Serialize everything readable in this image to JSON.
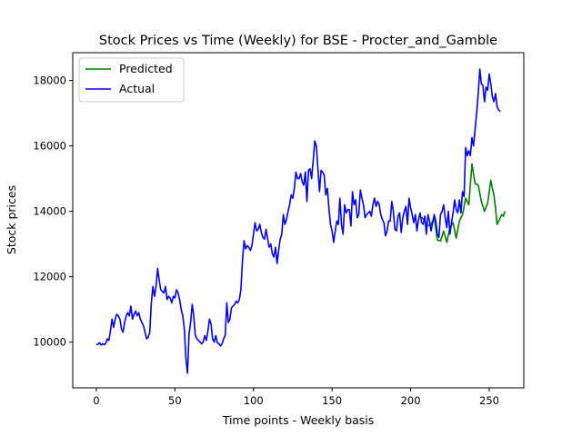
{
  "chart_data": {
    "type": "line",
    "title": "Stock Prices vs Time (Weekly) for BSE - Procter_and_Gamble",
    "xlabel": "Time points - Weekly basis",
    "ylabel": "Stock prices",
    "xlim": [
      -15,
      272
    ],
    "ylim": [
      8600,
      18850
    ],
    "xticks": [
      0,
      50,
      100,
      150,
      200,
      250
    ],
    "yticks": [
      10000,
      12000,
      14000,
      16000,
      18000
    ],
    "xtick_labels": [
      "0",
      "50",
      "100",
      "150",
      "200",
      "250"
    ],
    "ytick_labels": [
      "10000",
      "12000",
      "14000",
      "16000",
      "18000"
    ],
    "grid": false,
    "legend_position": "top-left",
    "series": [
      {
        "name": "Predicted",
        "color": "#008000",
        "points": [
          [
            207,
            13820
          ],
          [
            209,
            13700
          ],
          [
            211,
            13560
          ],
          [
            213,
            13600
          ],
          [
            215,
            13800
          ],
          [
            217,
            13120
          ],
          [
            219,
            13090
          ],
          [
            221,
            13400
          ],
          [
            223,
            13050
          ],
          [
            225,
            13500
          ],
          [
            227,
            13650
          ],
          [
            229,
            13180
          ],
          [
            231,
            13700
          ],
          [
            233,
            13900
          ],
          [
            235,
            14400
          ],
          [
            237,
            14200
          ],
          [
            239,
            15450
          ],
          [
            241,
            14850
          ],
          [
            243,
            14800
          ],
          [
            245,
            14300
          ],
          [
            247,
            14000
          ],
          [
            249,
            14250
          ],
          [
            251,
            14950
          ],
          [
            252,
            14700
          ],
          [
            253,
            14500
          ],
          [
            254,
            14100
          ],
          [
            255,
            13600
          ],
          [
            256,
            13700
          ],
          [
            257,
            13800
          ],
          [
            258,
            13900
          ],
          [
            259,
            13850
          ],
          [
            260,
            14000
          ]
        ]
      },
      {
        "name": "Actual",
        "color": "#0000ff",
        "points": [
          [
            0,
            9920
          ],
          [
            1,
            9930
          ],
          [
            2,
            9980
          ],
          [
            3,
            9910
          ],
          [
            4,
            9950
          ],
          [
            5,
            9920
          ],
          [
            6,
            9960
          ],
          [
            7,
            10100
          ],
          [
            8,
            10050
          ],
          [
            9,
            10350
          ],
          [
            10,
            10700
          ],
          [
            11,
            10450
          ],
          [
            12,
            10700
          ],
          [
            13,
            10850
          ],
          [
            14,
            10800
          ],
          [
            15,
            10700
          ],
          [
            16,
            10400
          ],
          [
            17,
            10300
          ],
          [
            18,
            10600
          ],
          [
            19,
            10800
          ],
          [
            20,
            10900
          ],
          [
            21,
            10800
          ],
          [
            22,
            11100
          ],
          [
            23,
            10700
          ],
          [
            24,
            10850
          ],
          [
            25,
            10950
          ],
          [
            26,
            10800
          ],
          [
            27,
            10900
          ],
          [
            28,
            10700
          ],
          [
            29,
            10600
          ],
          [
            30,
            10500
          ],
          [
            31,
            10300
          ],
          [
            32,
            10100
          ],
          [
            33,
            10150
          ],
          [
            34,
            10300
          ],
          [
            35,
            11200
          ],
          [
            36,
            11700
          ],
          [
            37,
            11400
          ],
          [
            38,
            11700
          ],
          [
            39,
            12250
          ],
          [
            40,
            11900
          ],
          [
            41,
            11600
          ],
          [
            42,
            11550
          ],
          [
            43,
            11500
          ],
          [
            44,
            11700
          ],
          [
            45,
            11300
          ],
          [
            46,
            11400
          ],
          [
            47,
            11350
          ],
          [
            48,
            11200
          ],
          [
            49,
            11400
          ],
          [
            50,
            11350
          ],
          [
            51,
            11600
          ],
          [
            52,
            11500
          ],
          [
            53,
            11300
          ],
          [
            54,
            11000
          ],
          [
            55,
            10800
          ],
          [
            56,
            10400
          ],
          [
            57,
            9500
          ],
          [
            58,
            9050
          ],
          [
            59,
            10250
          ],
          [
            60,
            10600
          ],
          [
            61,
            11150
          ],
          [
            62,
            10800
          ],
          [
            63,
            10200
          ],
          [
            64,
            10100
          ],
          [
            65,
            10050
          ],
          [
            66,
            10000
          ],
          [
            67,
            9950
          ],
          [
            68,
            10000
          ],
          [
            69,
            10200
          ],
          [
            70,
            10050
          ],
          [
            71,
            10350
          ],
          [
            72,
            10700
          ],
          [
            73,
            10550
          ],
          [
            74,
            10100
          ],
          [
            75,
            10000
          ],
          [
            76,
            10200
          ],
          [
            77,
            9980
          ],
          [
            78,
            9950
          ],
          [
            79,
            9880
          ],
          [
            80,
            9950
          ],
          [
            81,
            10100
          ],
          [
            82,
            10200
          ],
          [
            83,
            11200
          ],
          [
            84,
            10600
          ],
          [
            85,
            10700
          ],
          [
            86,
            11050
          ],
          [
            87,
            11100
          ],
          [
            88,
            11150
          ],
          [
            89,
            11250
          ],
          [
            90,
            11200
          ],
          [
            91,
            11300
          ],
          [
            92,
            11600
          ],
          [
            93,
            12500
          ],
          [
            94,
            13100
          ],
          [
            95,
            12850
          ],
          [
            96,
            12950
          ],
          [
            97,
            12900
          ],
          [
            98,
            12800
          ],
          [
            99,
            12950
          ],
          [
            100,
            13300
          ],
          [
            101,
            13650
          ],
          [
            102,
            13400
          ],
          [
            103,
            13450
          ],
          [
            104,
            13600
          ],
          [
            105,
            13350
          ],
          [
            106,
            13200
          ],
          [
            107,
            13150
          ],
          [
            108,
            13450
          ],
          [
            109,
            13150
          ],
          [
            110,
            12900
          ],
          [
            111,
            13000
          ],
          [
            112,
            12700
          ],
          [
            113,
            12600
          ],
          [
            114,
            12900
          ],
          [
            115,
            12400
          ],
          [
            116,
            12800
          ],
          [
            117,
            13150
          ],
          [
            118,
            13300
          ],
          [
            119,
            13900
          ],
          [
            120,
            13600
          ],
          [
            121,
            13750
          ],
          [
            122,
            14000
          ],
          [
            123,
            14200
          ],
          [
            124,
            14500
          ],
          [
            125,
            14400
          ],
          [
            126,
            14700
          ],
          [
            127,
            15200
          ],
          [
            128,
            15000
          ],
          [
            129,
            15000
          ],
          [
            130,
            15150
          ],
          [
            131,
            14900
          ],
          [
            132,
            14800
          ],
          [
            133,
            15200
          ],
          [
            134,
            14300
          ],
          [
            135,
            15250
          ],
          [
            136,
            15300
          ],
          [
            137,
            15000
          ],
          [
            138,
            15550
          ],
          [
            139,
            16150
          ],
          [
            140,
            16000
          ],
          [
            141,
            15300
          ],
          [
            142,
            14600
          ],
          [
            143,
            15250
          ],
          [
            144,
            15200
          ],
          [
            145,
            15100
          ],
          [
            146,
            14500
          ],
          [
            147,
            14700
          ],
          [
            148,
            14100
          ],
          [
            149,
            13600
          ],
          [
            150,
            13400
          ],
          [
            151,
            13050
          ],
          [
            152,
            13400
          ],
          [
            153,
            13700
          ],
          [
            154,
            13600
          ],
          [
            155,
            14400
          ],
          [
            156,
            13600
          ],
          [
            157,
            13300
          ],
          [
            158,
            14200
          ],
          [
            159,
            13950
          ],
          [
            160,
            14050
          ],
          [
            161,
            14050
          ],
          [
            162,
            13550
          ],
          [
            163,
            14600
          ],
          [
            164,
            14200
          ],
          [
            165,
            14350
          ],
          [
            166,
            13800
          ],
          [
            167,
            13900
          ],
          [
            168,
            14650
          ],
          [
            169,
            14400
          ],
          [
            170,
            14200
          ],
          [
            171,
            13800
          ],
          [
            172,
            13900
          ],
          [
            173,
            13950
          ],
          [
            174,
            14000
          ],
          [
            175,
            13850
          ],
          [
            176,
            14200
          ],
          [
            177,
            14400
          ],
          [
            178,
            14150
          ],
          [
            179,
            14300
          ],
          [
            180,
            14200
          ],
          [
            181,
            13900
          ],
          [
            182,
            13750
          ],
          [
            183,
            13650
          ],
          [
            184,
            13250
          ],
          [
            185,
            13400
          ],
          [
            186,
            13700
          ],
          [
            187,
            13700
          ],
          [
            188,
            14300
          ],
          [
            189,
            14000
          ],
          [
            190,
            13450
          ],
          [
            191,
            13400
          ],
          [
            192,
            13850
          ],
          [
            193,
            13950
          ],
          [
            194,
            13350
          ],
          [
            195,
            13800
          ],
          [
            196,
            14000
          ],
          [
            197,
            14150
          ],
          [
            198,
            13600
          ],
          [
            199,
            14400
          ],
          [
            200,
            14100
          ],
          [
            201,
            13900
          ],
          [
            202,
            13650
          ],
          [
            203,
            13900
          ],
          [
            204,
            13400
          ],
          [
            205,
            13750
          ],
          [
            206,
            13950
          ],
          [
            207,
            13650
          ],
          [
            208,
            13600
          ],
          [
            209,
            13850
          ],
          [
            210,
            13300
          ],
          [
            211,
            13900
          ],
          [
            212,
            13700
          ],
          [
            213,
            13400
          ],
          [
            214,
            13650
          ],
          [
            215,
            13900
          ],
          [
            216,
            13700
          ],
          [
            217,
            13300
          ],
          [
            218,
            13200
          ],
          [
            219,
            13900
          ],
          [
            220,
            14000
          ],
          [
            221,
            14200
          ],
          [
            222,
            13800
          ],
          [
            223,
            13500
          ],
          [
            224,
            14000
          ],
          [
            225,
            13300
          ],
          [
            226,
            13650
          ],
          [
            227,
            13950
          ],
          [
            228,
            14350
          ],
          [
            229,
            14050
          ],
          [
            230,
            13950
          ],
          [
            231,
            14350
          ],
          [
            232,
            13950
          ],
          [
            233,
            14600
          ],
          [
            234,
            14450
          ],
          [
            235,
            15950
          ],
          [
            236,
            15700
          ],
          [
            237,
            15850
          ],
          [
            238,
            15700
          ],
          [
            239,
            16250
          ],
          [
            240,
            16000
          ],
          [
            241,
            16500
          ],
          [
            242,
            17000
          ],
          [
            243,
            17600
          ],
          [
            244,
            18350
          ],
          [
            245,
            17900
          ],
          [
            246,
            17850
          ],
          [
            247,
            17350
          ],
          [
            248,
            17800
          ],
          [
            249,
            17700
          ],
          [
            250,
            18200
          ],
          [
            251,
            17900
          ],
          [
            252,
            17500
          ],
          [
            253,
            17350
          ],
          [
            254,
            17600
          ],
          [
            255,
            17200
          ],
          [
            256,
            17100
          ],
          [
            257,
            17050
          ]
        ]
      }
    ]
  }
}
